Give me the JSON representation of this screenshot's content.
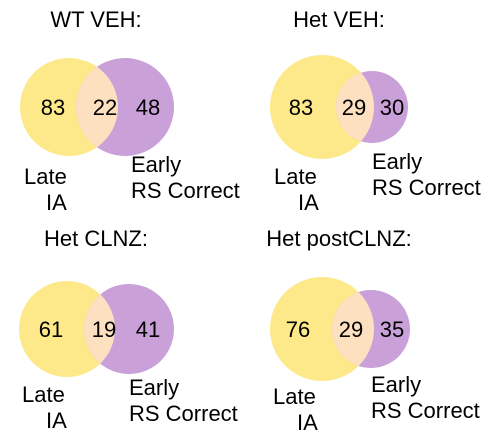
{
  "colors": {
    "set_a": "#fde98a",
    "set_b": "#c9a0d8",
    "overlap": "#fde0c0"
  },
  "panels": [
    {
      "title": "WT VEH:",
      "only_a": "83",
      "both": "22",
      "only_b": "48",
      "label_a_line1": "Late",
      "label_a_line2": "IA",
      "label_b_line1": "Early",
      "label_b_line2": "RS Correct"
    },
    {
      "title": "Het VEH:",
      "only_a": "83",
      "both": "29",
      "only_b": "30",
      "label_a_line1": "Late",
      "label_a_line2": "IA",
      "label_b_line1": "Early",
      "label_b_line2": "RS Correct"
    },
    {
      "title": "Het CLNZ:",
      "only_a": "61",
      "both": "19",
      "only_b": "41",
      "label_a_line1": "Late",
      "label_a_line2": "IA",
      "label_b_line1": "Early",
      "label_b_line2": "RS Correct"
    },
    {
      "title": "Het postCLNZ:",
      "only_a": "76",
      "both": "29",
      "only_b": "35",
      "label_a_line1": "Late",
      "label_a_line2": "IA",
      "label_b_line1": "Early",
      "label_b_line2": "RS Correct"
    }
  ]
}
